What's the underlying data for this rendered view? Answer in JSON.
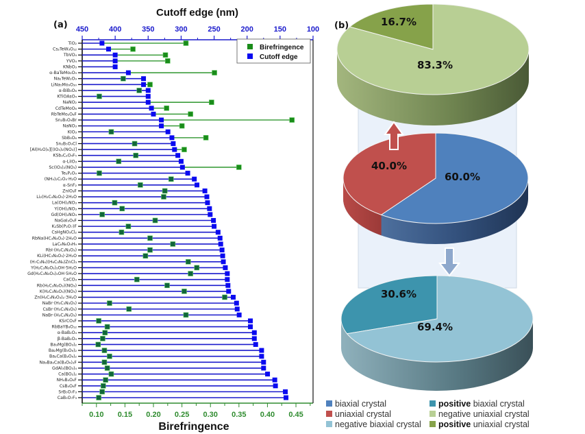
{
  "chart_data": [
    {
      "type": "scatter",
      "panel_label": "(a)",
      "title": "",
      "xlabel_top": "Cutoff edge (nm)",
      "xlabel_bottom": "Birefringence",
      "top_axis": {
        "lim": [
          450,
          100
        ],
        "ticks": [
          "450",
          "400",
          "350",
          "300",
          "250",
          "200",
          "150",
          "100"
        ],
        "tick_values": [
          450,
          400,
          350,
          300,
          250,
          200,
          150,
          100
        ],
        "minor_step": 25,
        "color": "#1a1acc"
      },
      "bottom_axis": {
        "lim": [
          0.075,
          0.48
        ],
        "ticks": [
          "0.10",
          "0.15",
          "0.20",
          "0.25",
          "0.30",
          "0.35",
          "0.40",
          "0.45"
        ],
        "tick_values": [
          0.1,
          0.15,
          0.2,
          0.25,
          0.3,
          0.35,
          0.4,
          0.45
        ],
        "minor_step": 0.025,
        "color": "#2e8b2e"
      },
      "legend": {
        "position": "top-right",
        "items": [
          {
            "label": "Birefringence",
            "color": "#1a8c1a"
          },
          {
            "label": "Cutoff edge",
            "color": "#0a0af0"
          }
        ]
      },
      "grid": false,
      "rows": [
        {
          "label": "TiO₂",
          "cutoff_nm": 420,
          "birefringence": 0.257
        },
        {
          "label": "Cs₂TeW₃O₁₂",
          "cutoff_nm": 410,
          "birefringence": 0.164
        },
        {
          "label": "TbVO₄",
          "cutoff_nm": 400,
          "birefringence": 0.221
        },
        {
          "label": "YVO₄",
          "cutoff_nm": 400,
          "birefringence": 0.225
        },
        {
          "label": "KNbO₃",
          "cutoff_nm": 400,
          "birefringence": null
        },
        {
          "label": "α-BaTeMo₂O₉",
          "cutoff_nm": 380,
          "birefringence": 0.307
        },
        {
          "label": "Na₂TeW₂O₉",
          "cutoff_nm": 357,
          "birefringence": 0.147
        },
        {
          "label": "LiNa₅Mo₉O₃₀",
          "cutoff_nm": 357,
          "birefringence": 0.194
        },
        {
          "label": "α-BiB₃O₆",
          "cutoff_nm": 350,
          "birefringence": 0.175
        },
        {
          "label": "KTiOAsO₄",
          "cutoff_nm": 350,
          "birefringence": 0.105
        },
        {
          "label": "NaNO₂",
          "cutoff_nm": 350,
          "birefringence": 0.302
        },
        {
          "label": "CdTeMoO₆",
          "cutoff_nm": 345,
          "birefringence": 0.223
        },
        {
          "label": "RbTeMo₂O₈F",
          "cutoff_nm": 342,
          "birefringence": 0.265
        },
        {
          "label": "Sn₂B₅O₉Br",
          "cutoff_nm": 330,
          "birefringence": 0.443
        },
        {
          "label": "NaNO₃",
          "cutoff_nm": 330,
          "birefringence": 0.25
        },
        {
          "label": "KIO₃",
          "cutoff_nm": 320,
          "birefringence": 0.126
        },
        {
          "label": "SbB₃O₆",
          "cutoff_nm": 314,
          "birefringence": 0.292
        },
        {
          "label": "Sn₂B₅O₉Cl",
          "cutoff_nm": 312,
          "birefringence": 0.167
        },
        {
          "label": "[Al(H₂O)₆][(IO₃)₂(NO₃)]",
          "cutoff_nm": 310,
          "birefringence": 0.254
        },
        {
          "label": "KSb₂C₂O₄F₅",
          "cutoff_nm": 305,
          "birefringence": 0.169
        },
        {
          "label": "α-LiIO₃",
          "cutoff_nm": 300,
          "birefringence": 0.139
        },
        {
          "label": "Sc(IO₃)₂(NO₃)",
          "cutoff_nm": 298,
          "birefringence": 0.35
        },
        {
          "label": "Te₂P₂O₉",
          "cutoff_nm": 290,
          "birefringence": 0.105
        },
        {
          "label": "(NH₄)₂C₂O₄·H₂O",
          "cutoff_nm": 280,
          "birefringence": 0.231
        },
        {
          "label": "α-SnF₂",
          "cutoff_nm": 276,
          "birefringence": 0.177
        },
        {
          "label": "ZnIO₃F",
          "cutoff_nm": 264,
          "birefringence": 0.22
        },
        {
          "label": "Li₂(H₂C₄N₂O₃)·2H₂O",
          "cutoff_nm": 261,
          "birefringence": 0.218
        },
        {
          "label": "La(OH)₂NO₃",
          "cutoff_nm": 260,
          "birefringence": 0.132
        },
        {
          "label": "Y(OH)₂NO₃",
          "cutoff_nm": 257,
          "birefringence": 0.145
        },
        {
          "label": "Gd(OH)₂NO₃",
          "cutoff_nm": 256,
          "birefringence": 0.11
        },
        {
          "label": "NaGaI₃O₉F",
          "cutoff_nm": 251,
          "birefringence": 0.203
        },
        {
          "label": "K₂Sb(P₂O₇)F",
          "cutoff_nm": 250,
          "birefringence": 0.156
        },
        {
          "label": "CsHgNO₃Cl₂",
          "cutoff_nm": 244,
          "birefringence": 0.144
        },
        {
          "label": "RbNa(HC₃N₃O₃)·2H₂O",
          "cutoff_nm": 241,
          "birefringence": 0.194
        },
        {
          "label": "LaC₆N₆O₉H₉",
          "cutoff_nm": 240,
          "birefringence": 0.234
        },
        {
          "label": "RbI·(H₃C₃N₃O₃)",
          "cutoff_nm": 238,
          "birefringence": 0.194
        },
        {
          "label": "KLi(HC₃N₃O₃)·2H₂O",
          "cutoff_nm": 237,
          "birefringence": 0.186
        },
        {
          "label": "(H₇C₃N₆)(H₆C₃N₆)ZnCl₃",
          "cutoff_nm": 236,
          "birefringence": 0.261
        },
        {
          "label": "Y(H₂C₃N₃O₃)₂OH·5H₂O",
          "cutoff_nm": 233,
          "birefringence": 0.276
        },
        {
          "label": "Gd(H₂C₃N₃O₃)₂OH·5H₂O",
          "cutoff_nm": 230,
          "birefringence": 0.265
        },
        {
          "label": "CaCO₃",
          "cutoff_nm": 230,
          "birefringence": 0.171
        },
        {
          "label": "Rb(H₂C₃N₃O₃)(NO₃)",
          "cutoff_nm": 229,
          "birefringence": 0.224
        },
        {
          "label": "K(H₂C₃N₃O₃)(NO₃)",
          "cutoff_nm": 228,
          "birefringence": 0.254
        },
        {
          "label": "Zn(H₂C₃N₃O₃)₂·3H₂O",
          "cutoff_nm": 221,
          "birefringence": 0.325
        },
        {
          "label": "NaBr·(H₃C₃N₃O₃)",
          "cutoff_nm": 216,
          "birefringence": 0.123
        },
        {
          "label": "CsBr·(H₃C₃N₃O₃)",
          "cutoff_nm": 215,
          "birefringence": 0.157
        },
        {
          "label": "NaBr·(H₃C₃N₃O₃)",
          "cutoff_nm": 212,
          "birefringence": 0.257
        },
        {
          "label": "KSrCO₃F",
          "cutoff_nm": 195,
          "birefringence": 0.104
        },
        {
          "label": "RbBaYB₆O₁₂",
          "cutoff_nm": 195,
          "birefringence": 0.119
        },
        {
          "label": "α-BaB₂O₄",
          "cutoff_nm": 189,
          "birefringence": 0.115
        },
        {
          "label": "β-BaB₂O₄",
          "cutoff_nm": 189,
          "birefringence": 0.111
        },
        {
          "label": "Ba₃Mg(BO₃)₂",
          "cutoff_nm": 187,
          "birefringence": 0.103
        },
        {
          "label": "Ba₂Mg(B₃O₆)₂",
          "cutoff_nm": 178,
          "birefringence": 0.114
        },
        {
          "label": "Ba₂Ca(B₃O₆)₂",
          "cutoff_nm": 178,
          "birefringence": 0.123
        },
        {
          "label": "Na₃Ba₂Ca(B₃O₆)₂F",
          "cutoff_nm": 175,
          "birefringence": 0.114
        },
        {
          "label": "GdAl₃(BO₃)₄",
          "cutoff_nm": 175,
          "birefringence": 0.119
        },
        {
          "label": "Ca(BO₂)₂",
          "cutoff_nm": 169,
          "birefringence": 0.126
        },
        {
          "label": "NH₄B₄O₆F",
          "cutoff_nm": 158,
          "birefringence": 0.116
        },
        {
          "label": "CsB₄O₆F",
          "cutoff_nm": 157,
          "birefringence": 0.112
        },
        {
          "label": "SrB₅O₇F₃",
          "cutoff_nm": 142,
          "birefringence": 0.11
        },
        {
          "label": "CaB₅O₇F₃",
          "cutoff_nm": 141,
          "birefringence": 0.104
        }
      ]
    },
    {
      "type": "pie",
      "panel_label": "(b)",
      "title": "",
      "pies": [
        {
          "name": "uniaxial-breakdown",
          "slices": [
            {
              "label": "positive uniaxial crystal",
              "value": 16.7,
              "text": "16.7%",
              "color": "#86a24a"
            },
            {
              "label": "negative uniaxial crystal",
              "value": 83.3,
              "text": "83.3%",
              "color": "#b8cf94"
            }
          ],
          "side_color": "#5e7040"
        },
        {
          "name": "crystal-type",
          "slices": [
            {
              "label": "uniaxial crystal",
              "value": 40.0,
              "text": "40.0%",
              "color": "#c0504d"
            },
            {
              "label": "biaxial crystal",
              "value": 60.0,
              "text": "60.0%",
              "color": "#4f81bd"
            }
          ],
          "side_color": "#2c4a70"
        },
        {
          "name": "biaxial-breakdown",
          "slices": [
            {
              "label": "positive biaxial crystal",
              "value": 30.6,
              "text": "30.6%",
              "color": "#3d94ad"
            },
            {
              "label": "negative biaxial crystal",
              "value": 69.4,
              "text": "69.4%",
              "color": "#93c3d5"
            }
          ],
          "side_color": "#44606a"
        }
      ],
      "arrows": [
        {
          "direction": "up",
          "from": "uniaxial crystal",
          "to": "uniaxial-breakdown",
          "color": "#c0504d"
        },
        {
          "direction": "down",
          "from": "biaxial crystal",
          "to": "biaxial-breakdown",
          "color": "#8ea8cc"
        }
      ],
      "legend": {
        "position": "bottom",
        "items": [
          {
            "bold": "",
            "text": "biaxial crystal",
            "color": "#4f81bd"
          },
          {
            "bold": "",
            "text": "uniaxial crystal",
            "color": "#c0504d"
          },
          {
            "bold": "",
            "text": "negative biaxial crystal",
            "color": "#93c3d5"
          },
          {
            "bold": "positive",
            "text": " biaxial crystal",
            "color": "#3d94ad"
          },
          {
            "bold": "",
            "text": "negative uniaxial crystal",
            "color": "#b8cf94"
          },
          {
            "bold": "positive",
            "text": " uniaxial crystal",
            "color": "#86a24a"
          }
        ]
      }
    }
  ]
}
